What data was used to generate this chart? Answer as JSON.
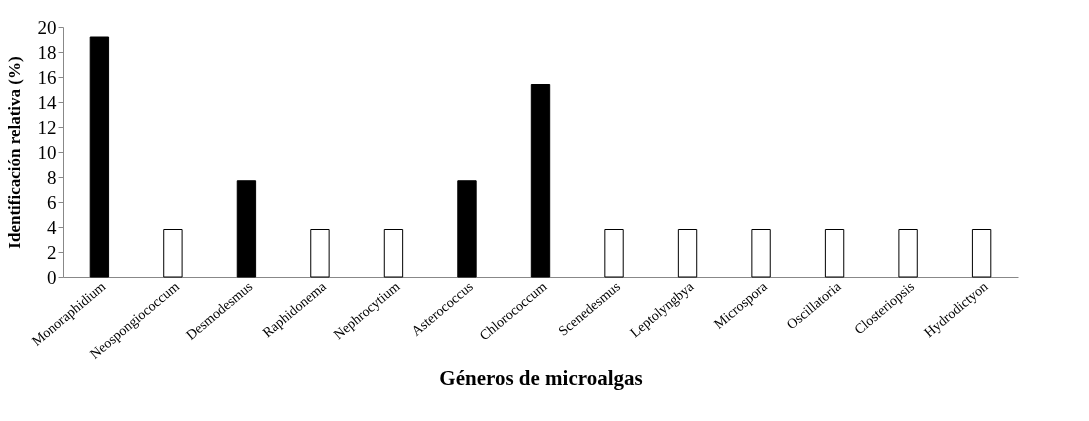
{
  "chart_data": {
    "type": "bar",
    "xlabel": "Géneros de microalgas",
    "ylabel": "Identificación relativa (%)",
    "categories": [
      "Monoraphidium",
      "Neospongiococcum",
      "Desmodesmus",
      "Raphidonema",
      "Nephrocytium",
      "Asterococcus",
      "Chlorococcum",
      "Scenedesmus",
      "Leptolyngbya",
      "Microspora",
      "Oscillatoria",
      "Closteriopsis",
      "Hydrodictyon"
    ],
    "values": [
      19.2,
      3.8,
      7.7,
      3.8,
      3.8,
      7.7,
      15.4,
      3.8,
      3.8,
      3.8,
      3.8,
      3.8,
      3.8
    ],
    "colors": [
      "#000000",
      "#ffffff",
      "#000000",
      "#ffffff",
      "#ffffff",
      "#000000",
      "#000000",
      "#ffffff",
      "#ffffff",
      "#ffffff",
      "#ffffff",
      "#ffffff",
      "#ffffff"
    ],
    "ylim": [
      0,
      20
    ],
    "yticks": [
      0,
      2,
      4,
      6,
      8,
      10,
      12,
      14,
      16,
      18,
      20
    ],
    "grid": false
  }
}
